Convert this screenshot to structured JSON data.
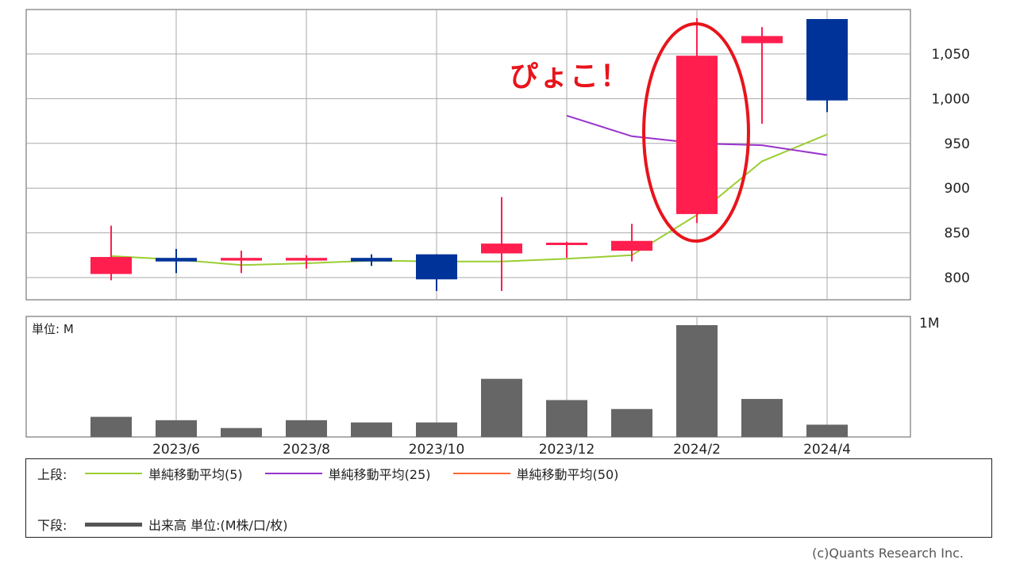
{
  "chart_data": [
    {
      "type": "candlestick",
      "x_labels": [
        "2023/6",
        "2023/8",
        "2023/10",
        "2023/12",
        "2024/2",
        "2024/4"
      ],
      "y_ticks": [
        800,
        850,
        900,
        950,
        1000,
        1050
      ],
      "ylim": [
        775,
        1100
      ],
      "grid": true,
      "colors": {
        "up": "#ff1e4e",
        "down": "#003399",
        "ma5": "#9acd32",
        "ma25": "#9933cc",
        "ma50": "#ff6633"
      },
      "candles": [
        {
          "month": "2023/5",
          "open": 804,
          "high": 858,
          "low": 797,
          "close": 823
        },
        {
          "month": "2023/6",
          "open": 822,
          "high": 832,
          "low": 805,
          "close": 818
        },
        {
          "month": "2023/7",
          "open": 819,
          "high": 830,
          "low": 805,
          "close": 822
        },
        {
          "month": "2023/8",
          "open": 819,
          "high": 825,
          "low": 810,
          "close": 822
        },
        {
          "month": "2023/9",
          "open": 822,
          "high": 826,
          "low": 813,
          "close": 818
        },
        {
          "month": "2023/10",
          "open": 826,
          "high": 826,
          "low": 785,
          "close": 798
        },
        {
          "month": "2023/11",
          "open": 827,
          "high": 890,
          "low": 785,
          "close": 838
        },
        {
          "month": "2023/12",
          "open": 837,
          "high": 840,
          "low": 822,
          "close": 839
        },
        {
          "month": "2024/1",
          "open": 830,
          "high": 860,
          "low": 818,
          "close": 841
        },
        {
          "month": "2024/2",
          "open": 871,
          "high": 1090,
          "low": 861,
          "close": 1048
        },
        {
          "month": "2024/3",
          "open": 1062,
          "high": 1080,
          "low": 972,
          "close": 1070
        },
        {
          "month": "2024/4",
          "open": 1089,
          "high": 1089,
          "low": 985,
          "close": 998
        }
      ],
      "ma5": [
        824,
        820,
        814,
        816,
        819,
        818,
        818,
        821,
        825,
        870,
        930,
        960
      ],
      "ma25": [
        null,
        null,
        null,
        null,
        null,
        null,
        null,
        981,
        958,
        950,
        948,
        937
      ]
    },
    {
      "type": "bar",
      "unit_label": "単位: M",
      "y_max_label": "1M",
      "ylim": [
        0,
        1
      ],
      "categories": [
        "2023/5",
        "2023/6",
        "2023/7",
        "2023/8",
        "2023/9",
        "2023/10",
        "2023/11",
        "2023/12",
        "2024/1",
        "2024/2",
        "2024/3",
        "2024/4"
      ],
      "values": [
        0.18,
        0.15,
        0.08,
        0.15,
        0.13,
        0.13,
        0.52,
        0.33,
        0.25,
        1.0,
        0.34,
        0.11
      ],
      "color": "#666666"
    }
  ],
  "annotation": {
    "text": "ぴょこ！",
    "color": "#e8141b"
  },
  "legend": {
    "upper_label": "上段:",
    "lower_label": "下段:",
    "items": [
      {
        "name": "単純移動平均(5)",
        "color": "#9acd32"
      },
      {
        "name": "単純移動平均(25)",
        "color": "#9933cc"
      },
      {
        "name": "単純移動平均(50)",
        "color": "#ff6633"
      }
    ],
    "volume": {
      "name": "出来高 単位:(M株/口/枚)",
      "color": "#555555"
    }
  },
  "copyright": "(c)Quants Research Inc."
}
